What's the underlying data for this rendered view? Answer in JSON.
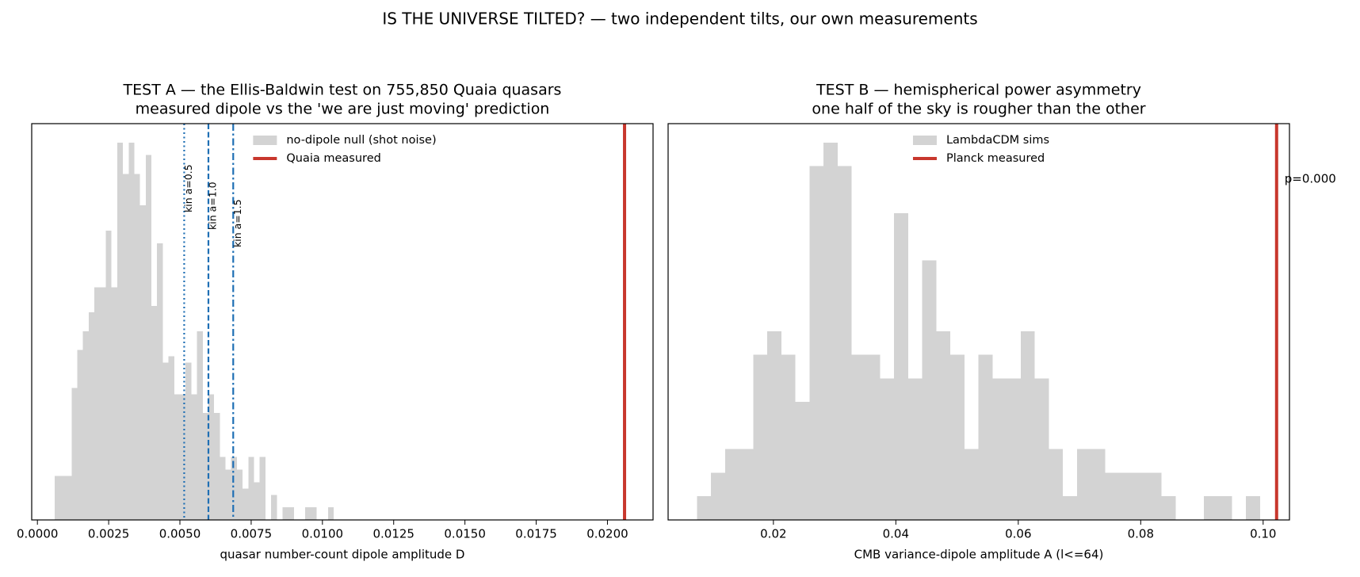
{
  "suptitle": "IS THE UNIVERSE TILTED? — two independent tilts, our own measurements",
  "chart_data": [
    {
      "type": "histogram",
      "title": "TEST A — the Ellis-Baldwin test on 755,850 Quaia quasars",
      "subtitle": "measured dipole vs the 'we are just moving' prediction",
      "xlabel": "quasar number-count dipole amplitude  D",
      "bins": [
        0.0006,
        0.0008,
        0.001,
        0.0012,
        0.0014,
        0.0016,
        0.0018,
        0.002,
        0.0022,
        0.0024,
        0.0026,
        0.0028,
        0.003,
        0.0032,
        0.0034,
        0.0036,
        0.0038,
        0.004,
        0.0042,
        0.0044,
        0.0046,
        0.0048,
        0.005,
        0.0052,
        0.0054,
        0.0056,
        0.0058,
        0.006,
        0.0062,
        0.0064,
        0.0066,
        0.0068,
        0.007,
        0.0072,
        0.0074,
        0.0076,
        0.0078,
        0.008,
        0.0082,
        0.0084,
        0.0086,
        0.0088,
        0.009,
        0.0092,
        0.0094,
        0.0096,
        0.0098,
        0.01,
        0.0102,
        0.0104,
        0.0106
      ],
      "series": [
        {
          "name": "no-dipole null (shot noise)",
          "color": "#d3d3d3",
          "values": [
            7,
            7,
            7,
            21,
            27,
            30,
            33,
            37,
            37,
            46,
            37,
            60,
            55,
            60,
            55,
            50,
            58,
            34,
            44,
            25,
            26,
            20,
            20,
            25,
            20,
            30,
            17,
            20,
            17,
            10,
            8,
            10,
            8,
            5,
            10,
            6,
            10,
            0,
            4,
            0,
            2,
            2,
            0,
            0,
            2,
            2,
            0,
            0,
            2,
            0
          ]
        }
      ],
      "measured": {
        "name": "Quaia measured",
        "value": 0.0206,
        "color": "#c8372d"
      },
      "markers": [
        {
          "label": "kin a=0.5",
          "value": 0.00515,
          "style": "dotted",
          "color": "#1f6fb4"
        },
        {
          "label": "kin a=1.0",
          "value": 0.006,
          "style": "dashed",
          "color": "#1f6fb4"
        },
        {
          "label": "kin a=1.5",
          "value": 0.00687,
          "style": "dashdot",
          "color": "#1f6fb4"
        }
      ],
      "xlim": [
        -0.0002,
        0.0216
      ],
      "xticks": [
        {
          "value": 0,
          "label": "0.0000"
        },
        0.0025,
        {
          "value": 0.005,
          "label": "0.0050"
        },
        0.0075,
        {
          "value": 0.01,
          "label": "0.0100"
        },
        0.0125,
        {
          "value": 0.015,
          "label": "0.0150"
        },
        0.0175,
        {
          "value": 0.02,
          "label": "0.0200"
        }
      ],
      "ylim": [
        0,
        63
      ],
      "legend": "upper center"
    },
    {
      "type": "histogram",
      "title": "TEST B — hemispherical power asymmetry",
      "subtitle": "one half of the sky is rougher than the other",
      "xlabel": "CMB variance-dipole amplitude  A  (l<=64)",
      "bins": [
        0.0075,
        0.0098,
        0.0121,
        0.0144,
        0.0167,
        0.019,
        0.0213,
        0.0236,
        0.0259,
        0.0282,
        0.0305,
        0.0328,
        0.0351,
        0.0374,
        0.0397,
        0.042,
        0.0443,
        0.0466,
        0.0489,
        0.0512,
        0.0535,
        0.0558,
        0.0581,
        0.0604,
        0.0627,
        0.065,
        0.0673,
        0.0696,
        0.0719,
        0.0742,
        0.0765,
        0.0788,
        0.0811,
        0.0834,
        0.0857,
        0.088,
        0.0903,
        0.0926,
        0.0949,
        0.0972,
        0.0995
      ],
      "series": [
        {
          "name": "LambdaCDM sims",
          "color": "#d3d3d3",
          "values": [
            1,
            2,
            3,
            3,
            7,
            8,
            7,
            5,
            15,
            16,
            15,
            7,
            7,
            6,
            13,
            6,
            11,
            8,
            7,
            3,
            7,
            6,
            6,
            8,
            6,
            3,
            1,
            3,
            3,
            2,
            2,
            2,
            2,
            1,
            0,
            0,
            1,
            1,
            0,
            1
          ]
        }
      ],
      "measured": {
        "name": "Planck measured",
        "value": 0.1022,
        "color": "#c8372d"
      },
      "annotation": {
        "text": "p=0.000",
        "color": "#a93226"
      },
      "xlim": [
        0.0028,
        0.1043
      ],
      "xticks": [
        0.02,
        0.04,
        0.06,
        0.08,
        {
          "value": 0.1,
          "label": "0.10"
        }
      ],
      "ylim": [
        0,
        16.8
      ],
      "legend": "upper center"
    }
  ]
}
